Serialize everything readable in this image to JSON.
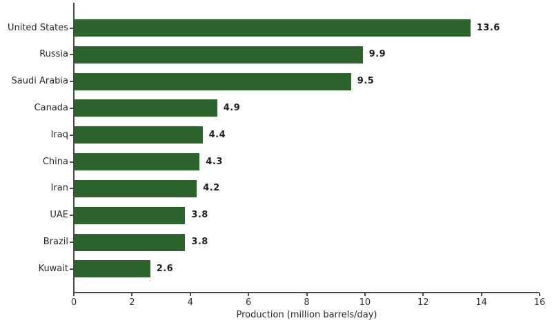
{
  "chart_data": {
    "type": "bar",
    "orientation": "horizontal",
    "title": "",
    "xlabel": "Production (million barrels/day)",
    "ylabel": "",
    "categories": [
      "United States",
      "Russia",
      "Saudi Arabia",
      "Canada",
      "Iraq",
      "China",
      "Iran",
      "UAE",
      "Brazil",
      "Kuwait"
    ],
    "values": [
      13.6,
      9.9,
      9.5,
      4.9,
      4.4,
      4.3,
      4.2,
      3.8,
      3.8,
      2.6
    ],
    "value_labels": [
      "13.6",
      "9.9",
      "9.5",
      "4.9",
      "4.4",
      "4.3",
      "4.2",
      "3.8",
      "3.8",
      "2.6"
    ],
    "xlim": [
      0,
      16
    ],
    "xticks": [
      0,
      2,
      4,
      6,
      8,
      10,
      12,
      14,
      16
    ],
    "grid": false,
    "legend": null,
    "colors": {
      "bar": "#2d642d",
      "axis": "#4a4a4a",
      "tick_label": "#333333",
      "category_label": "#262626",
      "value_label": "#1f1f1f",
      "background": "#ffffff"
    }
  }
}
